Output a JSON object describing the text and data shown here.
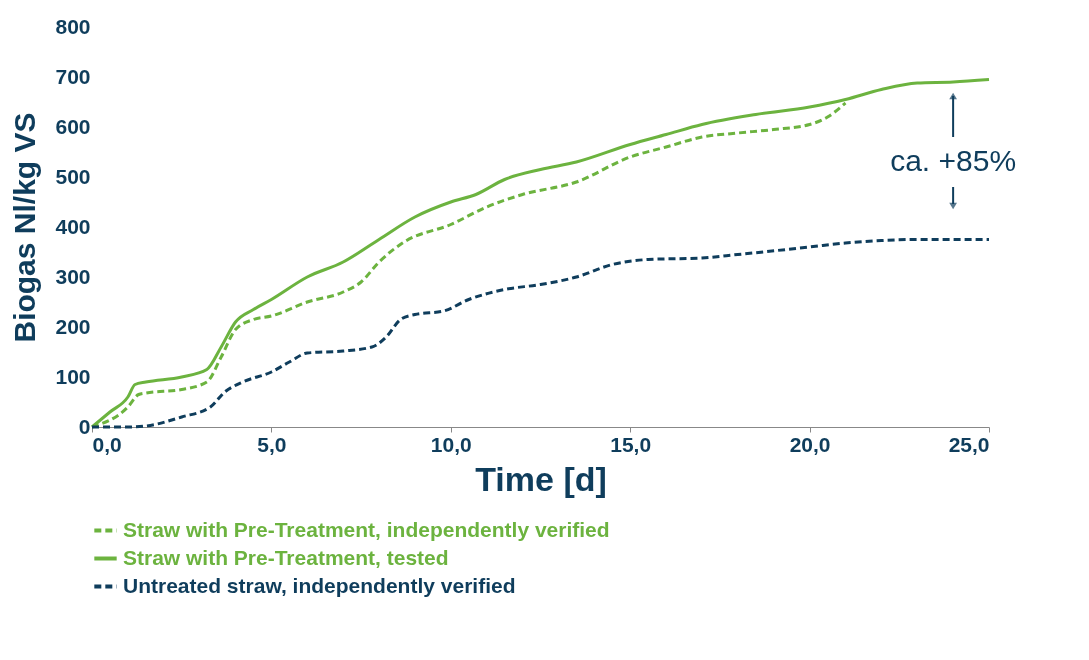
{
  "chart_data": {
    "type": "line",
    "xlabel": "Time [d]",
    "ylabel": "Biogas Nl/kg VS",
    "xlim": [
      0,
      25
    ],
    "ylim": [
      0,
      800
    ],
    "xticks": [
      {
        "value": 0,
        "label": "0,0"
      },
      {
        "value": 5,
        "label": "5,0"
      },
      {
        "value": 10,
        "label": "10,0"
      },
      {
        "value": 15,
        "label": "15,0"
      },
      {
        "value": 20,
        "label": "20,0"
      },
      {
        "value": 25,
        "label": "25,0"
      }
    ],
    "yticks": [
      0,
      100,
      200,
      300,
      400,
      500,
      600,
      700,
      800
    ],
    "grid": false,
    "legend": "bottom",
    "marker": "none",
    "annotations": [
      {
        "text": "ca. +85%",
        "x": 24,
        "y": 690
      }
    ],
    "series": [
      {
        "name": "Straw with Pre-Treatment, independently verified",
        "color": "#6cb33f",
        "line_style": "dashed",
        "x": [
          0,
          1.0,
          1.3,
          1.5,
          2.5,
          3.2,
          3.6,
          4.0,
          4.5,
          5.0,
          6.0,
          7.0,
          7.5,
          8.0,
          8.7,
          10.0,
          11.0,
          12.0,
          13.5,
          15.0,
          16.0,
          17.0,
          18.0,
          19.0,
          20.0,
          20.5,
          21.0
        ],
        "values": [
          0,
          40,
          65,
          68,
          75,
          90,
          140,
          195,
          215,
          222,
          250,
          270,
          290,
          330,
          370,
          405,
          440,
          465,
          490,
          540,
          560,
          580,
          588,
          595,
          605,
          620,
          648
        ]
      },
      {
        "name": "Straw with Pre-Treatment, tested",
        "color": "#6cb33f",
        "line_style": "solid",
        "x": [
          0,
          0.5,
          1.0,
          1.2,
          1.5,
          2.5,
          3.2,
          3.6,
          4.0,
          4.5,
          5.0,
          6.0,
          7.0,
          8.0,
          9.0,
          10.0,
          10.7,
          11.5,
          12.5,
          13.5,
          15.0,
          16.0,
          17.0,
          18.5,
          20.0,
          21.0,
          22.0,
          23.0,
          24.0,
          25.0
        ],
        "values": [
          0,
          30,
          60,
          85,
          90,
          100,
          115,
          160,
          210,
          235,
          255,
          300,
          330,
          375,
          420,
          450,
          465,
          495,
          515,
          530,
          565,
          585,
          605,
          625,
          640,
          655,
          675,
          688,
          690,
          695
        ]
      },
      {
        "name": "Untreated straw, independently verified",
        "color": "#0f3d5c",
        "line_style": "dashed",
        "x": [
          0,
          1.0,
          1.5,
          2.5,
          3.3,
          3.7,
          4.2,
          5.0,
          5.5,
          6.0,
          7.0,
          7.8,
          8.2,
          8.6,
          9.0,
          9.8,
          10.5,
          11.5,
          12.5,
          13.5,
          14.5,
          15.5,
          17.0,
          18.0,
          20.0,
          21.0,
          22.0,
          23.0,
          24.0,
          25.0
        ],
        "values": [
          0,
          0,
          2,
          20,
          40,
          70,
          90,
          110,
          130,
          148,
          152,
          160,
          180,
          215,
          225,
          232,
          255,
          275,
          285,
          300,
          325,
          335,
          338,
          345,
          360,
          368,
          373,
          375,
          375,
          375
        ]
      }
    ]
  }
}
